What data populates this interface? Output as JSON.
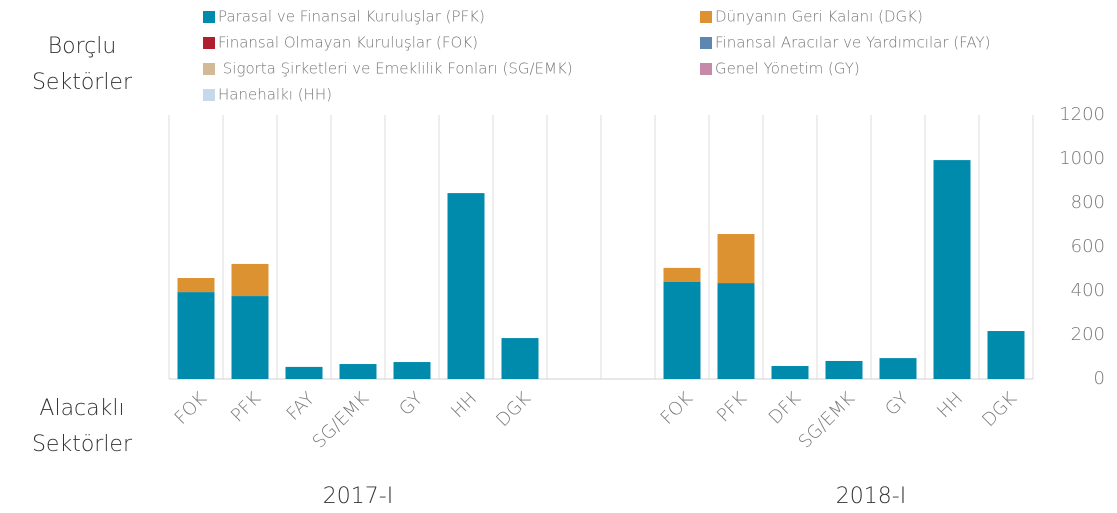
{
  "chart_data": {
    "type": "stacked_bar",
    "categories": [
      "FOK",
      "PFK",
      "FAY",
      "SG/EMK",
      "GY",
      "HH",
      "DGK",
      null,
      null,
      "FOK",
      "PFK",
      "DFK",
      "SG/EMK",
      "GY",
      "HH",
      "DGK"
    ],
    "series": [
      {
        "name": "Parasal ve Finansal Kuruluşlar (PFK)",
        "color": "#008aab",
        "values": [
          395,
          377,
          55,
          68,
          77,
          845,
          186,
          null,
          null,
          441,
          436,
          59,
          82,
          95,
          995,
          218
        ]
      },
      {
        "name": "Dünyanın Geri Kalanı (DGK)",
        "color": "#dd9232",
        "values": [
          64,
          146,
          0,
          0,
          0,
          0,
          0,
          null,
          null,
          64,
          223,
          0,
          0,
          0,
          0,
          0
        ]
      },
      {
        "name": "Finansal Olmayan Kuruluşlar (FOK)",
        "color": "#b01f2e",
        "values": [
          0,
          0,
          0,
          0,
          0,
          0,
          0,
          null,
          null,
          0,
          0,
          0,
          0,
          0,
          0,
          0
        ]
      },
      {
        "name": "Finansal Aracılar ve Yardımcılar (FAY)",
        "color": "#5b87b0",
        "values": [
          0,
          0,
          0,
          0,
          0,
          0,
          0,
          null,
          null,
          0,
          0,
          0,
          0,
          0,
          0,
          0
        ]
      },
      {
        "name": " Sigorta Şirketleri ve Emeklilik Fonları (SG/EMK)",
        "color": "#d3b996",
        "values": [
          0,
          0,
          0,
          0,
          0,
          0,
          0,
          null,
          null,
          0,
          0,
          0,
          0,
          0,
          0,
          0
        ]
      },
      {
        "name": "Genel Yönetim (GY)",
        "color": "#c58aa8",
        "values": [
          0,
          0,
          0,
          0,
          0,
          0,
          0,
          null,
          null,
          0,
          0,
          0,
          0,
          0,
          0,
          0
        ]
      },
      {
        "name": "Hanehalkı (HH)",
        "color": "#c5d9ea",
        "values": [
          0,
          0,
          0,
          0,
          0,
          0,
          0,
          null,
          null,
          0,
          0,
          0,
          0,
          0,
          0,
          0
        ]
      }
    ],
    "groups": [
      "2017-I",
      "2018-I"
    ],
    "top_label": [
      "Borçlu",
      "Sektörler"
    ],
    "bottom_label": [
      "Alacaklı",
      "Sektörler"
    ],
    "ylim": [
      0,
      1200
    ],
    "yticks": [
      0,
      200,
      400,
      600,
      800,
      1000,
      1200
    ],
    "y_axis_side": "right",
    "grid": "vertical"
  }
}
